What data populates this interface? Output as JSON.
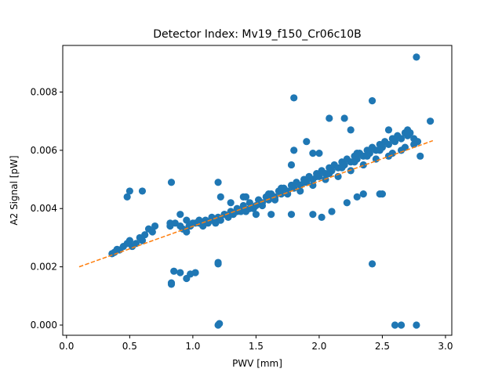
{
  "chart_data": {
    "type": "scatter",
    "title": "Detector Index: Mv19_f150_Cr06c10B",
    "xlabel": "PWV [mm]",
    "ylabel": "A2 Signal [pW]",
    "xlim": [
      -0.03,
      3.05
    ],
    "ylim": [
      -0.00035,
      0.0096
    ],
    "xticks": [
      0.0,
      0.5,
      1.0,
      1.5,
      2.0,
      2.5,
      3.0
    ],
    "xtick_labels": [
      "0.0",
      "0.5",
      "1.0",
      "1.5",
      "2.0",
      "2.5",
      "3.0"
    ],
    "yticks": [
      0.0,
      0.002,
      0.004,
      0.006,
      0.008
    ],
    "ytick_labels": [
      "0.000",
      "0.002",
      "0.004",
      "0.006",
      "0.008"
    ],
    "colors": {
      "points": "#1f77b4",
      "fit": "#ff7f0e"
    },
    "series": [
      {
        "name": "data",
        "style": "marker",
        "x": [
          0.36,
          0.38,
          0.4,
          0.42,
          0.45,
          0.48,
          0.5,
          0.52,
          0.55,
          0.58,
          0.6,
          0.62,
          0.65,
          0.68,
          0.7,
          0.5,
          0.48,
          0.6,
          0.82,
          0.82,
          0.86,
          0.9,
          0.95,
          0.97,
          1.0,
          0.9,
          0.92,
          0.95,
          0.98,
          1.02,
          1.05,
          1.08,
          1.1,
          1.12,
          1.15,
          1.18,
          1.2,
          1.22,
          1.25,
          1.28,
          1.3,
          1.32,
          1.35,
          1.38,
          1.4,
          1.42,
          1.45,
          1.48,
          1.5,
          1.52,
          1.55,
          1.58,
          1.6,
          1.62,
          1.65,
          1.68,
          1.7,
          1.72,
          1.75,
          1.78,
          1.8,
          1.82,
          1.85,
          1.88,
          1.9,
          1.92,
          1.95,
          1.98,
          2.0,
          2.02,
          2.05,
          2.08,
          2.1,
          2.12,
          2.15,
          2.18,
          2.2,
          2.22,
          2.25,
          2.28,
          2.3,
          2.32,
          2.35,
          2.38,
          2.4,
          2.42,
          2.45,
          2.48,
          2.5,
          2.52,
          2.55,
          2.58,
          2.6,
          2.62,
          2.65,
          2.68,
          2.7,
          2.72,
          2.75,
          2.78,
          1.05,
          1.15,
          1.25,
          1.35,
          1.45,
          1.55,
          1.65,
          1.75,
          1.85,
          1.95,
          2.05,
          2.15,
          2.25,
          2.35,
          2.45,
          2.55,
          2.65,
          2.75,
          1.3,
          1.42,
          1.6,
          1.7,
          1.88,
          1.98,
          2.08,
          2.18,
          2.28,
          2.38,
          2.48,
          2.58,
          2.68,
          0.83,
          1.2,
          1.8,
          1.9,
          1.95,
          2.0,
          2.08,
          2.2,
          2.25,
          2.3,
          1.22,
          1.78,
          2.42,
          2.7,
          1.4,
          1.2,
          1.78,
          2.6,
          2.65,
          2.77,
          2.77,
          1.8,
          2.42,
          1.2,
          2.1,
          2.22,
          2.48,
          2.88,
          2.55,
          2.7,
          2.8,
          2.5,
          2.3,
          2.35,
          2.02,
          1.95,
          1.5,
          1.62,
          0.83
        ],
        "y": [
          0.00245,
          0.0025,
          0.0026,
          0.00258,
          0.0027,
          0.0028,
          0.0029,
          0.0027,
          0.0028,
          0.003,
          0.0029,
          0.0031,
          0.0033,
          0.0032,
          0.0034,
          0.0046,
          0.0044,
          0.0046,
          0.0034,
          0.0035,
          0.0035,
          0.0034,
          0.0036,
          0.0034,
          0.0035,
          0.0038,
          0.0033,
          0.0032,
          0.0034,
          0.0035,
          0.0035,
          0.0034,
          0.0036,
          0.0035,
          0.0036,
          0.0035,
          0.0037,
          0.0036,
          0.0038,
          0.0037,
          0.0039,
          0.0038,
          0.004,
          0.0039,
          0.0041,
          0.0039,
          0.0042,
          0.004,
          0.0041,
          0.0043,
          0.0042,
          0.0044,
          0.0043,
          0.0045,
          0.0044,
          0.0046,
          0.0045,
          0.0047,
          0.0046,
          0.0048,
          0.0047,
          0.0049,
          0.0048,
          0.005,
          0.0049,
          0.0051,
          0.005,
          0.0052,
          0.0051,
          0.0053,
          0.0052,
          0.0054,
          0.0053,
          0.0055,
          0.0054,
          0.0056,
          0.0055,
          0.0057,
          0.0056,
          0.0058,
          0.0057,
          0.0059,
          0.0058,
          0.006,
          0.0059,
          0.0061,
          0.006,
          0.0062,
          0.0061,
          0.0063,
          0.0062,
          0.0064,
          0.0063,
          0.0065,
          0.0064,
          0.0066,
          0.0065,
          0.0066,
          0.0064,
          0.0063,
          0.0036,
          0.0037,
          0.0038,
          0.0039,
          0.004,
          0.0041,
          0.0043,
          0.0045,
          0.0046,
          0.0048,
          0.005,
          0.0051,
          0.0053,
          0.0055,
          0.0057,
          0.0058,
          0.006,
          0.0062,
          0.0042,
          0.0044,
          0.0045,
          0.0047,
          0.0049,
          0.0051,
          0.0052,
          0.0054,
          0.0056,
          0.0058,
          0.006,
          0.0059,
          0.0061,
          0.0049,
          0.0049,
          0.006,
          0.0063,
          0.0059,
          0.0059,
          0.0071,
          0.0071,
          0.0067,
          0.0059,
          0.0044,
          0.0055,
          0.0077,
          0.0067,
          0.0044,
          0.0021,
          0.0038,
          0.0,
          0.0,
          0.0,
          0.0092,
          0.0078,
          0.0021,
          0.0,
          0.0039,
          0.0042,
          0.0045,
          0.007,
          0.0067,
          0.0066,
          0.0058,
          0.0045,
          0.0044,
          0.0045,
          0.0037,
          0.0038,
          0.0038,
          0.0038,
          0.0014
        ]
      },
      {
        "name": "fit",
        "style": "dashed-line",
        "x": [
          0.1,
          2.9
        ],
        "y": [
          0.002,
          0.00633
        ]
      }
    ],
    "extra_points": {
      "x": [
        0.83,
        0.85,
        0.9,
        0.95,
        0.98,
        1.02,
        1.2,
        1.21
      ],
      "y": [
        0.00145,
        0.00185,
        0.0018,
        0.0016,
        0.00175,
        0.0018,
        0.00215,
        5e-05
      ]
    }
  }
}
